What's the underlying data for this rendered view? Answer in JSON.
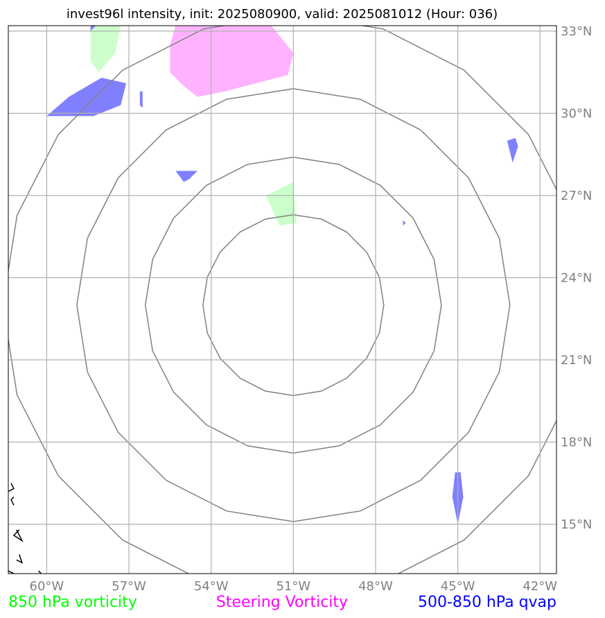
{
  "chart_data": {
    "type": "map",
    "title": "invest96l intensity, init: 2025080900, valid: 2025081012 (Hour: 036)",
    "x_range": [
      -61.4,
      -41.4
    ],
    "y_range": [
      13.2,
      33.2
    ],
    "x_ticks": [
      -60,
      -57,
      -54,
      -51,
      -48,
      -45,
      -42
    ],
    "x_tick_labels": [
      "60°W",
      "57°W",
      "54°W",
      "51°W",
      "48°W",
      "45°W",
      "42°W"
    ],
    "y_ticks": [
      15,
      18,
      21,
      24,
      27,
      30,
      33
    ],
    "y_tick_labels": [
      "15°N",
      "18°N",
      "21°N",
      "24°N",
      "27°N",
      "30°N",
      "33°N"
    ],
    "grid": true,
    "center": {
      "lon": -51,
      "lat": 23
    },
    "range_rings_deg": [
      3.3,
      5.4,
      7.9,
      10.6
    ],
    "legend": [
      {
        "label": "850 hPa vorticity",
        "color": "#00ff00"
      },
      {
        "label": "Steering Vorticity",
        "color": "#ff00ff"
      },
      {
        "label": "500-850 hPa qvap",
        "color": "#0000ff"
      }
    ],
    "layers": [
      {
        "name": "850 hPa vorticity",
        "color": "#ccffcc",
        "polygons": [
          [
            [
              -58.4,
              33.2
            ],
            [
              -57.3,
              33.2
            ],
            [
              -57.5,
              32.2
            ],
            [
              -58.1,
              31.5
            ],
            [
              -58.4,
              31.9
            ]
          ],
          [
            [
              -52.0,
              27.0
            ],
            [
              -51.0,
              27.5
            ],
            [
              -50.9,
              26.0
            ],
            [
              -51.5,
              25.9
            ]
          ]
        ]
      },
      {
        "name": "Steering Vorticity",
        "color": "#ffb3ff",
        "polygons": [
          [
            [
              -55.5,
              32.5
            ],
            [
              -55.3,
              33.2
            ],
            [
              -51.8,
              33.2
            ],
            [
              -51.0,
              32.2
            ],
            [
              -51.2,
              31.4
            ],
            [
              -53.5,
              30.8
            ],
            [
              -54.5,
              30.6
            ],
            [
              -55.0,
              31.0
            ],
            [
              -55.5,
              31.5
            ]
          ]
        ]
      },
      {
        "name": "500-850 hPa qvap",
        "color": "#8080ff",
        "polygons": [
          [
            [
              -58.0,
              31.3
            ],
            [
              -57.1,
              31.1
            ],
            [
              -57.3,
              30.3
            ],
            [
              -58.3,
              29.9
            ],
            [
              -60.0,
              29.9
            ],
            [
              -59.2,
              30.6
            ]
          ],
          [
            [
              -58.4,
              33.2
            ],
            [
              -58.2,
              33.2
            ],
            [
              -58.4,
              33.0
            ]
          ],
          [
            [
              -56.6,
              30.3
            ],
            [
              -56.6,
              30.8
            ],
            [
              -56.5,
              30.8
            ],
            [
              -56.5,
              30.2
            ]
          ],
          [
            [
              -55.3,
              27.9
            ],
            [
              -54.5,
              27.9
            ],
            [
              -54.8,
              27.6
            ],
            [
              -55.0,
              27.5
            ]
          ],
          [
            [
              -42.9,
              29.1
            ],
            [
              -42.8,
              28.8
            ],
            [
              -43.0,
              28.2
            ],
            [
              -43.2,
              29.0
            ]
          ],
          [
            [
              -47.0,
              26.1
            ],
            [
              -46.9,
              26.0
            ],
            [
              -47.0,
              25.9
            ]
          ],
          [
            [
              -45.1,
              16.9
            ],
            [
              -44.9,
              16.9
            ],
            [
              -44.8,
              16.0
            ],
            [
              -45.0,
              15.0
            ],
            [
              -45.2,
              16.0
            ]
          ]
        ]
      }
    ],
    "coastlines": [
      [
        [
          -61.3,
          16.5
        ],
        [
          -61.2,
          16.3
        ],
        [
          -61.4,
          16.2
        ]
      ],
      [
        [
          -61.2,
          16.0
        ],
        [
          -61.3,
          15.9
        ],
        [
          -61.2,
          15.7
        ]
      ],
      [
        [
          -61.1,
          14.8
        ],
        [
          -60.9,
          14.4
        ],
        [
          -61.2,
          14.6
        ],
        [
          -61.0,
          14.8
        ]
      ],
      [
        [
          -61.0,
          13.9
        ],
        [
          -60.9,
          13.6
        ],
        [
          -61.1,
          13.7
        ]
      ],
      [
        [
          -61.4,
          13.3
        ],
        [
          -61.2,
          13.2
        ]
      ],
      [
        [
          -60.3,
          13.3
        ],
        [
          -60.2,
          13.2
        ]
      ]
    ]
  }
}
